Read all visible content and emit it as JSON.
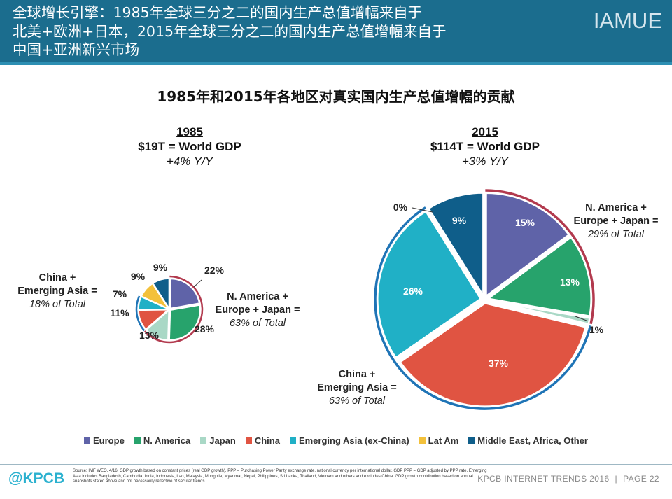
{
  "header": {
    "title": "全球增长引擎：1985年全球三分之二的国内生产总值增幅来自于\n北美+欧洲+日本，2015年全球三分之二的国内生产总值增幅来自于\n中国+亚洲新兴市场",
    "brand": "IAMUE"
  },
  "chart_data": {
    "type": "pie",
    "title": "1985年和2015年各地区对真实国内生产总值增幅的贡献",
    "categories": [
      "Europe",
      "N. America",
      "Japan",
      "China",
      "Emerging Asia (ex-China)",
      "Lat Am",
      "Middle East, Africa, Other"
    ],
    "colors": [
      "#5f63a8",
      "#27a36c",
      "#a9d8c6",
      "#e05442",
      "#20b0c6",
      "#f3c13b",
      "#0f5e8a"
    ],
    "pies": [
      {
        "year": "1985",
        "gdp": "$19T = World GDP",
        "growth": "+4% Y/Y",
        "series": [
          {
            "category": "Europe",
            "value": 22,
            "label": "22%"
          },
          {
            "category": "N. America",
            "value": 28,
            "label": "28%"
          },
          {
            "category": "Japan",
            "value": 13,
            "label": "13%"
          },
          {
            "category": "China",
            "value": 11,
            "label": "11%"
          },
          {
            "category": "Emerging Asia (ex-China)",
            "value": 7,
            "label": "7%"
          },
          {
            "category": "Lat Am",
            "value": 9,
            "label": "9%"
          },
          {
            "category": "Middle East, Africa, Other",
            "value": 9,
            "label": "9%"
          }
        ],
        "group_labels": [
          {
            "name": "N. America +\nEurope + Japan =",
            "total": "63% of Total"
          },
          {
            "name": "China +\nEmerging Asia =",
            "total": "18% of Total"
          }
        ]
      },
      {
        "year": "2015",
        "gdp": "$114T = World GDP",
        "growth": "+3% Y/Y",
        "series": [
          {
            "category": "Europe",
            "value": 15,
            "label": "15%"
          },
          {
            "category": "N. America",
            "value": 13,
            "label": "13%"
          },
          {
            "category": "Japan",
            "value": 1,
            "label": "1%"
          },
          {
            "category": "China",
            "value": 37,
            "label": "37%"
          },
          {
            "category": "Emerging Asia (ex-China)",
            "value": 26,
            "label": "26%"
          },
          {
            "category": "Lat Am",
            "value": 0,
            "label": "0%"
          },
          {
            "category": "Middle East, Africa, Other",
            "value": 9,
            "label": "9%"
          }
        ],
        "group_labels": [
          {
            "name": "N. America +\nEurope + Japan =",
            "total": "29% of Total"
          },
          {
            "name": "China +\nEmerging Asia =",
            "total": "63% of Total"
          }
        ]
      }
    ]
  },
  "legend": [
    {
      "label": "Europe",
      "color": "#5f63a8"
    },
    {
      "label": "N. America",
      "color": "#27a36c"
    },
    {
      "label": "Japan",
      "color": "#a9d8c6"
    },
    {
      "label": "China",
      "color": "#e05442"
    },
    {
      "label": "Emerging Asia (ex-China)",
      "color": "#20b0c6"
    },
    {
      "label": "Lat Am",
      "color": "#f3c13b"
    },
    {
      "label": "Middle East, Africa, Other",
      "color": "#0f5e8a"
    }
  ],
  "footer": {
    "logo": "@KPCB",
    "source": "Source: IMF WEO, 4/16. GDP growth based on constant prices (real GDP growth). PPP = Purchasing Power Parity exchange rate, national currency per international dollar. GDP PPP = GDP adjusted by PPP rate. Emerging Asia includes Bangladesh, Cambodia, India, Indonesia, Lao, Malaysia, Mongolia, Myanmar, Nepal, Philippines, Sri Lanka, Thailand, Vietnam and others and excludes China. GDP growth contribution based on annual snapshots stated above and not necessarily reflective of secular trends.",
    "report": "KPCB INTERNET TRENDS 2016",
    "page": "PAGE 22"
  }
}
